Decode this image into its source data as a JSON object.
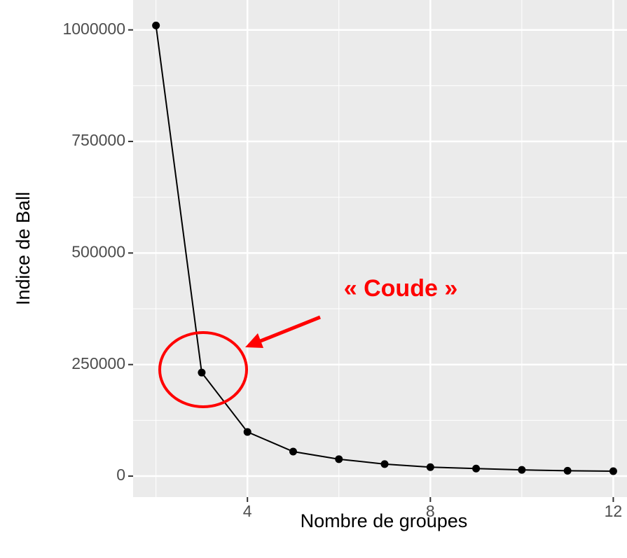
{
  "chart_data": {
    "type": "line",
    "x_label": "Nombre de groupes",
    "y_label": "Indice de Ball",
    "annotation": "« Coude »",
    "x": [
      2,
      3,
      4,
      5,
      6,
      7,
      8,
      9,
      10,
      11,
      12
    ],
    "series": [
      {
        "color": "#000000",
        "values": [
          1010000,
          232000,
          99000,
          55000,
          38000,
          27000,
          20000,
          17000,
          14000,
          12000,
          11000
        ]
      }
    ],
    "xlim": [
      1.5,
      12.3
    ],
    "xticks": [
      4,
      8,
      12
    ],
    "xminor": [
      2,
      6,
      10
    ],
    "ylim": [
      -47000,
      1067000
    ],
    "yticks": [
      0,
      250000,
      500000,
      750000,
      1000000
    ],
    "yminor": [
      125000,
      375000,
      625000,
      875000
    ],
    "grid": true,
    "background": "#ebebeb",
    "annotation_color": "#ff0000"
  }
}
